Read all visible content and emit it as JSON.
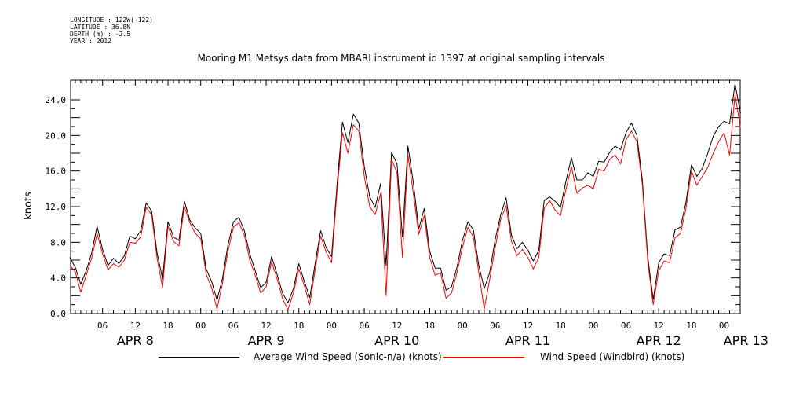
{
  "metadata": {
    "longitude": "LONGITUDE : 122W(-122)",
    "latitude": "LATITUDE : 36.8N",
    "depth": "DEPTH (m) : -2.5",
    "year": "YEAR : 2012"
  },
  "chart_data": {
    "type": "line",
    "title": "Mooring M1 Metsys data from MBARI instrument id 1397 at original sampling intervals",
    "ylabel": "knots",
    "xlabel": "",
    "ylim": [
      0,
      25.5
    ],
    "xlim_hours": [
      0,
      125
    ],
    "y_ticks": [
      "0.0",
      "4.0",
      "8.0",
      "12.0",
      "16.0",
      "20.0",
      "24.0"
    ],
    "x_hour_ticks": [
      {
        "hour": 6,
        "label": "06"
      },
      {
        "hour": 12,
        "label": "12"
      },
      {
        "hour": 18,
        "label": "18"
      },
      {
        "hour": 24,
        "label": "00"
      },
      {
        "hour": 30,
        "label": "06"
      },
      {
        "hour": 36,
        "label": "12"
      },
      {
        "hour": 42,
        "label": "18"
      },
      {
        "hour": 48,
        "label": "00"
      },
      {
        "hour": 54,
        "label": "06"
      },
      {
        "hour": 60,
        "label": "12"
      },
      {
        "hour": 66,
        "label": "18"
      },
      {
        "hour": 72,
        "label": "00"
      },
      {
        "hour": 78,
        "label": "06"
      },
      {
        "hour": 84,
        "label": "12"
      },
      {
        "hour": 90,
        "label": "18"
      },
      {
        "hour": 96,
        "label": "00"
      },
      {
        "hour": 102,
        "label": "06"
      },
      {
        "hour": 108,
        "label": "12"
      },
      {
        "hour": 114,
        "label": "18"
      },
      {
        "hour": 120,
        "label": "00"
      }
    ],
    "date_labels": [
      {
        "hour": 12,
        "label": "APR  8"
      },
      {
        "hour": 36,
        "label": "APR  9"
      },
      {
        "hour": 60,
        "label": "APR 10"
      },
      {
        "hour": 84,
        "label": "APR 11"
      },
      {
        "hour": 108,
        "label": "APR 12"
      },
      {
        "hour": 124,
        "label": "APR 13"
      }
    ],
    "grid": false,
    "legend_position": "bottom",
    "series": [
      {
        "name": "Average Wind Speed (Sonic-n/a) (knots)",
        "color": "#000000",
        "points": [
          [
            0,
            6.3
          ],
          [
            1,
            5.2
          ],
          [
            2,
            3.3
          ],
          [
            3,
            4.8
          ],
          [
            4,
            6.8
          ],
          [
            5,
            9.8
          ],
          [
            6,
            7.2
          ],
          [
            7,
            5.4
          ],
          [
            8,
            6.2
          ],
          [
            9,
            5.6
          ],
          [
            10,
            6.5
          ],
          [
            11,
            8.7
          ],
          [
            12,
            8.4
          ],
          [
            13,
            9.3
          ],
          [
            14,
            12.4
          ],
          [
            15,
            11.5
          ],
          [
            16,
            6.8
          ],
          [
            17,
            3.9
          ],
          [
            18,
            10.3
          ],
          [
            19,
            8.6
          ],
          [
            20,
            8.2
          ],
          [
            21,
            12.6
          ],
          [
            22,
            10.5
          ],
          [
            23,
            9.6
          ],
          [
            24,
            9.0
          ],
          [
            25,
            5.0
          ],
          [
            26,
            3.6
          ],
          [
            27,
            1.5
          ],
          [
            28,
            4.0
          ],
          [
            29,
            7.7
          ],
          [
            30,
            10.3
          ],
          [
            31,
            10.8
          ],
          [
            32,
            9.3
          ],
          [
            33,
            6.7
          ],
          [
            34,
            4.8
          ],
          [
            35,
            2.9
          ],
          [
            36,
            3.5
          ],
          [
            37,
            6.4
          ],
          [
            38,
            4.4
          ],
          [
            39,
            2.3
          ],
          [
            40,
            1.2
          ],
          [
            41,
            2.8
          ],
          [
            42,
            5.6
          ],
          [
            43,
            3.6
          ],
          [
            44,
            1.8
          ],
          [
            45,
            5.7
          ],
          [
            46,
            9.3
          ],
          [
            47,
            7.4
          ],
          [
            48,
            6.4
          ],
          [
            49,
            14.5
          ],
          [
            50,
            21.5
          ],
          [
            51,
            19.2
          ],
          [
            52,
            22.4
          ],
          [
            53,
            21.4
          ],
          [
            54,
            16.5
          ],
          [
            55,
            13.1
          ],
          [
            56,
            11.9
          ],
          [
            57,
            14.6
          ],
          [
            58,
            5.4
          ],
          [
            59,
            18.1
          ],
          [
            60,
            16.8
          ],
          [
            61,
            8.6
          ],
          [
            62,
            18.8
          ],
          [
            63,
            14.7
          ],
          [
            64,
            9.5
          ],
          [
            65,
            11.8
          ],
          [
            66,
            7.0
          ],
          [
            67,
            5.1
          ],
          [
            68,
            5.1
          ],
          [
            69,
            2.6
          ],
          [
            70,
            3.0
          ],
          [
            71,
            5.2
          ],
          [
            72,
            8.2
          ],
          [
            73,
            10.3
          ],
          [
            74,
            9.4
          ],
          [
            75,
            5.4
          ],
          [
            76,
            2.8
          ],
          [
            77,
            4.6
          ],
          [
            78,
            8.3
          ],
          [
            79,
            11.0
          ],
          [
            80,
            13.0
          ],
          [
            81,
            8.8
          ],
          [
            82,
            7.3
          ],
          [
            83,
            8.0
          ],
          [
            84,
            7.1
          ],
          [
            85,
            5.9
          ],
          [
            86,
            7.1
          ],
          [
            87,
            12.7
          ],
          [
            88,
            13.1
          ],
          [
            89,
            12.6
          ],
          [
            90,
            11.9
          ],
          [
            91,
            14.9
          ],
          [
            92,
            17.5
          ],
          [
            93,
            15.0
          ],
          [
            94,
            15.0
          ],
          [
            95,
            15.8
          ],
          [
            96,
            15.4
          ],
          [
            97,
            17.1
          ],
          [
            98,
            17.0
          ],
          [
            99,
            18.1
          ],
          [
            100,
            18.8
          ],
          [
            101,
            18.4
          ],
          [
            102,
            20.3
          ],
          [
            103,
            21.4
          ],
          [
            104,
            20.0
          ],
          [
            105,
            15.0
          ],
          [
            106,
            6.3
          ],
          [
            107,
            1.6
          ],
          [
            108,
            5.7
          ],
          [
            109,
            6.7
          ],
          [
            110,
            6.5
          ],
          [
            111,
            9.4
          ],
          [
            112,
            9.7
          ],
          [
            113,
            12.5
          ],
          [
            114,
            16.7
          ],
          [
            115,
            15.4
          ],
          [
            116,
            16.3
          ],
          [
            117,
            18.0
          ],
          [
            118,
            19.9
          ],
          [
            119,
            21.0
          ],
          [
            120,
            21.6
          ],
          [
            121,
            21.3
          ],
          [
            122,
            25.8
          ],
          [
            123,
            22.5
          ]
        ]
      },
      {
        "name": "Wind Speed (Windbird) (knots)",
        "color": "#ff0000",
        "points": [
          [
            0,
            5.4
          ],
          [
            1,
            4.7
          ],
          [
            2,
            2.4
          ],
          [
            3,
            4.3
          ],
          [
            4,
            6.2
          ],
          [
            5,
            9.0
          ],
          [
            6,
            6.7
          ],
          [
            7,
            4.9
          ],
          [
            8,
            5.6
          ],
          [
            9,
            5.2
          ],
          [
            10,
            6.0
          ],
          [
            11,
            8.0
          ],
          [
            12,
            7.9
          ],
          [
            13,
            8.6
          ],
          [
            14,
            11.9
          ],
          [
            15,
            11.1
          ],
          [
            16,
            6.2
          ],
          [
            17,
            2.9
          ],
          [
            18,
            9.8
          ],
          [
            19,
            8.1
          ],
          [
            20,
            7.6
          ],
          [
            21,
            12.0
          ],
          [
            22,
            10.2
          ],
          [
            23,
            9.0
          ],
          [
            24,
            8.4
          ],
          [
            25,
            4.4
          ],
          [
            26,
            2.9
          ],
          [
            27,
            0.5
          ],
          [
            28,
            3.4
          ],
          [
            29,
            7.0
          ],
          [
            30,
            9.7
          ],
          [
            31,
            10.2
          ],
          [
            32,
            8.8
          ],
          [
            33,
            6.0
          ],
          [
            34,
            4.3
          ],
          [
            35,
            2.3
          ],
          [
            36,
            3.0
          ],
          [
            37,
            5.8
          ],
          [
            38,
            3.9
          ],
          [
            39,
            1.7
          ],
          [
            40,
            0.4
          ],
          [
            41,
            2.3
          ],
          [
            42,
            5.0
          ],
          [
            43,
            3.1
          ],
          [
            44,
            1.0
          ],
          [
            45,
            5.0
          ],
          [
            46,
            8.7
          ],
          [
            47,
            6.9
          ],
          [
            48,
            5.7
          ],
          [
            49,
            13.8
          ],
          [
            50,
            20.3
          ],
          [
            51,
            18.0
          ],
          [
            52,
            21.2
          ],
          [
            53,
            20.5
          ],
          [
            54,
            15.4
          ],
          [
            55,
            12.0
          ],
          [
            56,
            11.1
          ],
          [
            57,
            13.5
          ],
          [
            58,
            2.0
          ],
          [
            59,
            17.3
          ],
          [
            60,
            15.8
          ],
          [
            61,
            6.3
          ],
          [
            62,
            17.8
          ],
          [
            63,
            13.5
          ],
          [
            64,
            8.9
          ],
          [
            65,
            11.0
          ],
          [
            66,
            6.3
          ],
          [
            67,
            4.3
          ],
          [
            68,
            4.6
          ],
          [
            69,
            1.7
          ],
          [
            70,
            2.3
          ],
          [
            71,
            4.6
          ],
          [
            72,
            7.4
          ],
          [
            73,
            9.7
          ],
          [
            74,
            8.6
          ],
          [
            75,
            4.6
          ],
          [
            76,
            0.5
          ],
          [
            77,
            3.8
          ],
          [
            78,
            7.4
          ],
          [
            79,
            10.5
          ],
          [
            80,
            12.1
          ],
          [
            81,
            8.1
          ],
          [
            82,
            6.5
          ],
          [
            83,
            7.2
          ],
          [
            84,
            6.3
          ],
          [
            85,
            5.0
          ],
          [
            86,
            6.3
          ],
          [
            87,
            11.8
          ],
          [
            88,
            12.7
          ],
          [
            89,
            11.6
          ],
          [
            90,
            11.0
          ],
          [
            91,
            14.0
          ],
          [
            92,
            16.5
          ],
          [
            93,
            13.5
          ],
          [
            94,
            14.1
          ],
          [
            95,
            14.4
          ],
          [
            96,
            14.0
          ],
          [
            97,
            16.2
          ],
          [
            98,
            16.0
          ],
          [
            99,
            17.3
          ],
          [
            100,
            17.8
          ],
          [
            101,
            16.8
          ],
          [
            102,
            19.5
          ],
          [
            103,
            20.5
          ],
          [
            104,
            19.3
          ],
          [
            105,
            14.5
          ],
          [
            106,
            5.8
          ],
          [
            107,
            1.0
          ],
          [
            108,
            4.8
          ],
          [
            109,
            5.9
          ],
          [
            110,
            5.7
          ],
          [
            111,
            8.5
          ],
          [
            112,
            9.0
          ],
          [
            113,
            11.8
          ],
          [
            114,
            16.0
          ],
          [
            115,
            14.4
          ],
          [
            116,
            15.4
          ],
          [
            117,
            16.4
          ],
          [
            118,
            18.0
          ],
          [
            119,
            19.3
          ],
          [
            120,
            20.3
          ],
          [
            121,
            17.8
          ],
          [
            122,
            24.6
          ],
          [
            123,
            20.8
          ]
        ]
      }
    ]
  }
}
